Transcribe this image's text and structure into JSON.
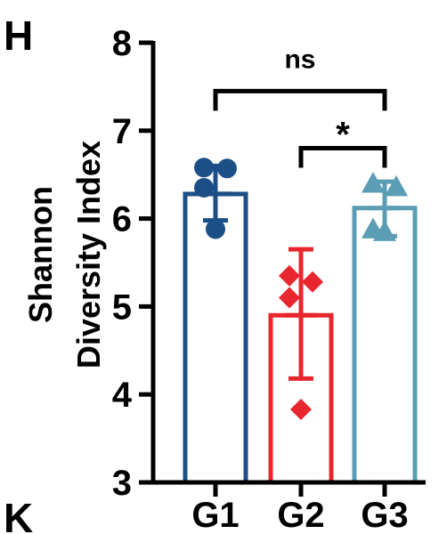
{
  "panel_labels": {
    "top": "H",
    "bottom": "K"
  },
  "colors": {
    "G1": "#1d4f87",
    "G2": "#e8262d",
    "G3": "#5b9db5",
    "axis": "#000000"
  },
  "chart_data": {
    "type": "bar",
    "categories": [
      "G1",
      "G2",
      "G3"
    ],
    "ylabel_lines": [
      "Shannon",
      "Diversity Index"
    ],
    "xlabel": "",
    "ylim": [
      3,
      8
    ],
    "yticks": [
      3,
      4,
      5,
      6,
      7,
      8
    ],
    "grid": false,
    "legend": "none",
    "series": [
      {
        "category": "G1",
        "mean": 6.28,
        "sd_low": 5.98,
        "sd_high": 6.6,
        "marker": "circle",
        "points": [
          6.58,
          6.57,
          6.35,
          5.88
        ]
      },
      {
        "category": "G2",
        "mean": 4.9,
        "sd_low": 4.18,
        "sd_high": 5.65,
        "marker": "diamond",
        "points": [
          5.35,
          5.28,
          5.1,
          3.83
        ]
      },
      {
        "category": "G3",
        "mean": 6.12,
        "sd_low": 5.8,
        "sd_high": 6.42,
        "marker": "triangle",
        "points": [
          6.4,
          6.36,
          5.88,
          5.85
        ]
      }
    ],
    "significance": [
      {
        "from": "G1",
        "to": "G3",
        "label": "ns",
        "y": 7.45
      },
      {
        "from": "G2",
        "to": "G3",
        "label": "*",
        "y": 6.8
      }
    ]
  }
}
